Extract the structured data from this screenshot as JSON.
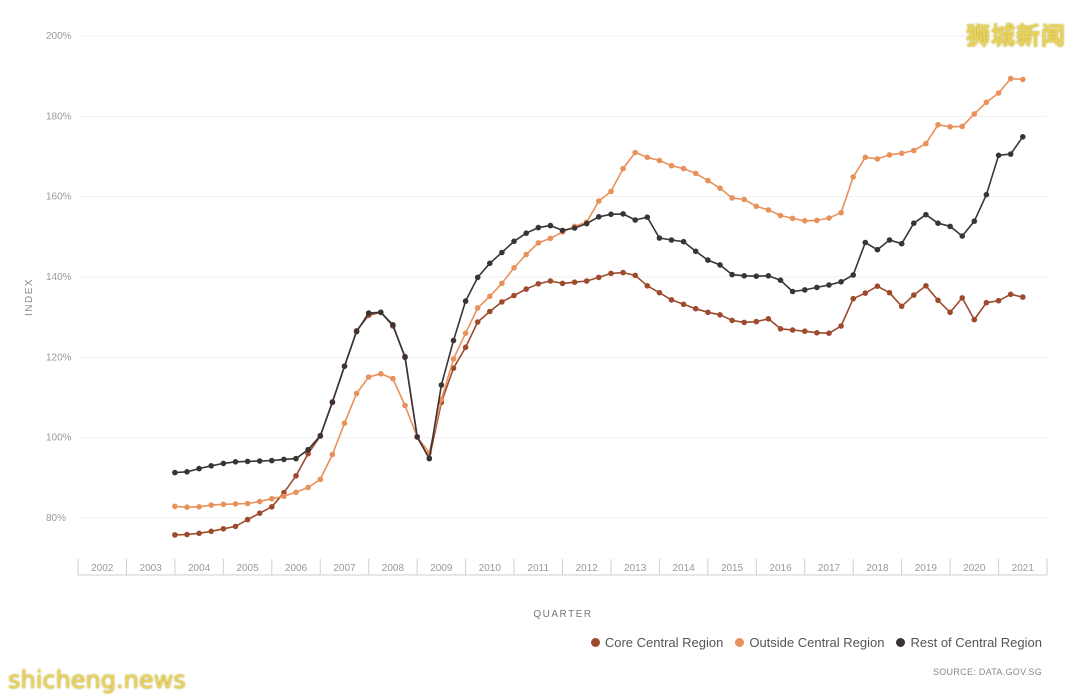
{
  "watermark_top": "狮城新闻",
  "watermark_bottom": "shicheng.news",
  "source": "SOURCE: DATA.GOV.SG",
  "chart_data": {
    "type": "line",
    "xlabel": "QUARTER",
    "ylabel": "INDEX",
    "ylim": [
      70,
      200
    ],
    "yticks": [
      80,
      100,
      120,
      140,
      160,
      180,
      200
    ],
    "ytick_labels": [
      "80%",
      "100%",
      "120%",
      "140%",
      "160%",
      "180%",
      "200%"
    ],
    "xticks": [
      "2002",
      "2003",
      "2004",
      "2005",
      "2006",
      "2007",
      "2008",
      "2009",
      "2010",
      "2011",
      "2012",
      "2013",
      "2014",
      "2015",
      "2016",
      "2017",
      "2018",
      "2019",
      "2020",
      "2021"
    ],
    "x_start": 2004.0,
    "x_step": 0.25,
    "grid": true,
    "legend_position": "bottom-right",
    "series": [
      {
        "name": "Core Central Region",
        "color": "#9e4a2c",
        "values": [
          75.8,
          75.9,
          76.2,
          76.7,
          77.3,
          77.9,
          79.6,
          81.2,
          82.8,
          86.3,
          90.5,
          96.0,
          100.4,
          108.9,
          117.8,
          126.6,
          130.5,
          131.2,
          127.8,
          120.2,
          100.2,
          94.9,
          108.8,
          117.3,
          122.5,
          128.8,
          131.4,
          133.8,
          135.4,
          137.0,
          138.3,
          139.0,
          138.4,
          138.7,
          139.0,
          139.9,
          140.9,
          141.1,
          140.4,
          137.8,
          136.1,
          134.3,
          133.2,
          132.1,
          131.2,
          130.6,
          129.2,
          128.7,
          128.9,
          129.6,
          127.1,
          126.8,
          126.5,
          126.1,
          126.0,
          127.8,
          134.6,
          136.0,
          137.7,
          136.1,
          132.7,
          135.5,
          137.8,
          134.2,
          131.2,
          134.8,
          129.4,
          133.6,
          134.1,
          135.7,
          135.0
        ]
      },
      {
        "name": "Outside Central Region",
        "color": "#e8915a",
        "values": [
          82.9,
          82.7,
          82.8,
          83.2,
          83.4,
          83.5,
          83.6,
          84.1,
          84.8,
          85.4,
          86.4,
          87.6,
          89.6,
          95.8,
          103.6,
          111.0,
          115.1,
          115.9,
          114.7,
          108.0,
          100.2,
          96.2,
          109.5,
          119.6,
          126.0,
          132.3,
          135.2,
          138.4,
          142.3,
          145.6,
          148.5,
          149.6,
          151.2,
          152.6,
          153.7,
          158.9,
          161.3,
          167.0,
          171.0,
          169.8,
          169.0,
          167.7,
          167.0,
          165.8,
          164.0,
          162.1,
          159.7,
          159.3,
          157.6,
          156.7,
          155.3,
          154.6,
          154.0,
          154.1,
          154.7,
          156.0,
          164.9,
          169.8,
          169.4,
          170.4,
          170.8,
          171.5,
          173.2,
          177.9,
          177.4,
          177.5,
          180.6,
          183.5,
          185.8,
          189.4,
          189.2
        ]
      },
      {
        "name": "Rest of Central Region",
        "color": "#3a3434",
        "values": [
          91.3,
          91.5,
          92.3,
          93.0,
          93.6,
          94.0,
          94.1,
          94.2,
          94.3,
          94.6,
          94.8,
          97.0,
          100.5,
          108.8,
          117.8,
          126.4,
          131.0,
          131.2,
          128.1,
          120.0,
          100.2,
          94.8,
          113.1,
          124.2,
          134.0,
          139.9,
          143.4,
          146.1,
          148.9,
          150.9,
          152.3,
          152.8,
          151.6,
          152.2,
          153.3,
          155.0,
          155.6,
          155.7,
          154.2,
          154.9,
          149.7,
          149.2,
          148.8,
          146.4,
          144.2,
          143.0,
          140.6,
          140.3,
          140.2,
          140.3,
          139.2,
          136.4,
          136.8,
          137.4,
          138.0,
          138.8,
          140.5,
          148.6,
          146.8,
          149.2,
          148.3,
          153.4,
          155.5,
          153.4,
          152.6,
          150.2,
          153.9,
          160.5,
          170.3,
          170.6,
          174.9
        ]
      }
    ]
  }
}
